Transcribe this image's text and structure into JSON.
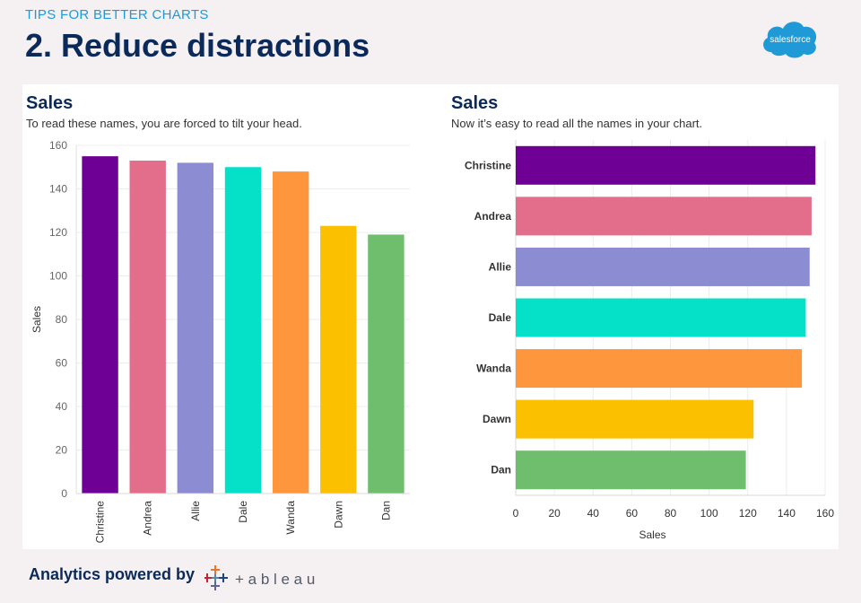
{
  "header": {
    "kicker": "TIPS FOR BETTER CHARTS",
    "title": "2. Reduce distractions",
    "logo_text": "salesforce"
  },
  "footer": {
    "text": "Analytics powered by",
    "brand": "+ a b l e a u"
  },
  "colors": {
    "Christine": "#6e0096",
    "Andrea": "#e26e8c",
    "Allie": "#8c8cd2",
    "Dale": "#05e1c8",
    "Wanda": "#fd963c",
    "Dawn": "#fbc000",
    "Dan": "#6ebe6e"
  },
  "chart_data": [
    {
      "type": "bar",
      "orientation": "vertical",
      "title": "Sales",
      "subtitle": "To read these names, you are forced to tilt your head.",
      "categories": [
        "Christine",
        "Andrea",
        "Allie",
        "Dale",
        "Wanda",
        "Dawn",
        "Dan"
      ],
      "values": [
        155,
        153,
        152,
        150,
        148,
        123,
        119
      ],
      "ylabel": "Sales",
      "xlabel": "",
      "ylim": [
        0,
        160
      ],
      "yticks": [
        0,
        20,
        40,
        60,
        80,
        100,
        120,
        140,
        160
      ],
      "grid": true,
      "tick_label_rotation": "vertical"
    },
    {
      "type": "bar",
      "orientation": "horizontal",
      "title": "Sales",
      "subtitle": "Now it’s easy to read all the names in your chart.",
      "categories": [
        "Christine",
        "Andrea",
        "Allie",
        "Dale",
        "Wanda",
        "Dawn",
        "Dan"
      ],
      "values": [
        155,
        153,
        152,
        150,
        148,
        123,
        119
      ],
      "xlabel": "Sales",
      "ylabel": "",
      "xlim": [
        0,
        160
      ],
      "xticks": [
        0,
        20,
        40,
        60,
        80,
        100,
        120,
        140,
        160
      ],
      "grid": true
    }
  ]
}
